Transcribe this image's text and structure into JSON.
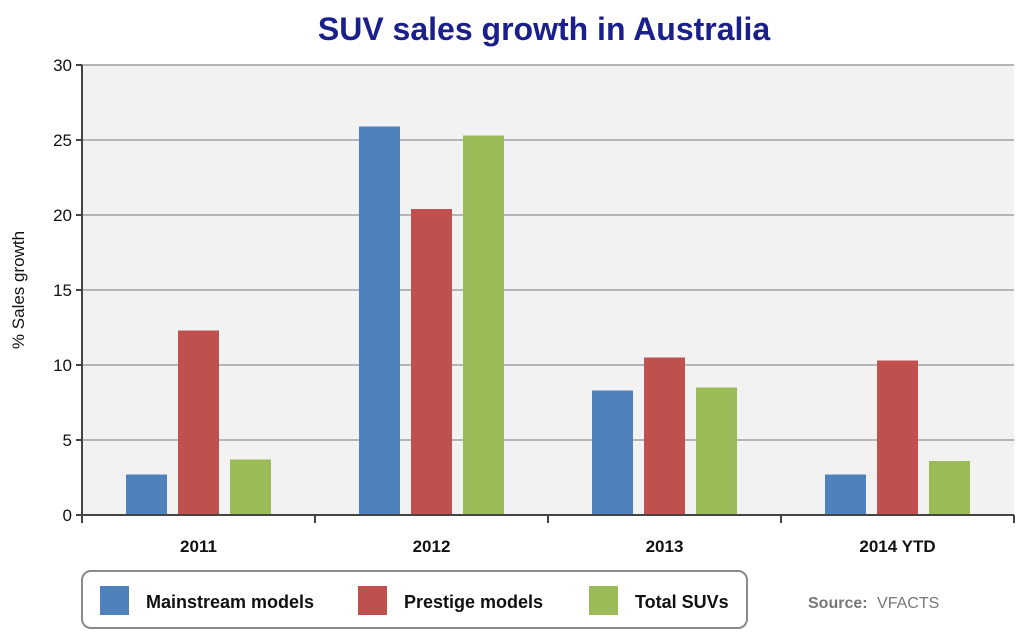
{
  "chart_data": {
    "type": "bar",
    "title": "SUV sales growth in Australia",
    "ylabel": "% Sales growth",
    "xlabel": "",
    "ylim": [
      0,
      30
    ],
    "yticks": [
      "0",
      "5",
      "10",
      "15",
      "20",
      "25",
      "30"
    ],
    "categories": [
      "2011",
      "2012",
      "2013",
      "2014 YTD"
    ],
    "series": [
      {
        "name": "Mainstream models",
        "color": "#4F81BD",
        "values": [
          2.7,
          25.9,
          8.3,
          2.7
        ]
      },
      {
        "name": "Prestige models",
        "color": "#C0504D",
        "values": [
          12.3,
          20.4,
          10.5,
          10.3
        ]
      },
      {
        "name": "Total SUVs",
        "color": "#9BBB59",
        "values": [
          3.7,
          25.3,
          8.5,
          3.6
        ]
      }
    ],
    "grid": true,
    "legend": "bottom-left"
  },
  "source": {
    "label": "Source:",
    "value": "VFACTS"
  },
  "colors": {
    "title": "#1A1F8C",
    "grid": "#b5b5b5",
    "plot_bg": "#f2f2f2"
  }
}
